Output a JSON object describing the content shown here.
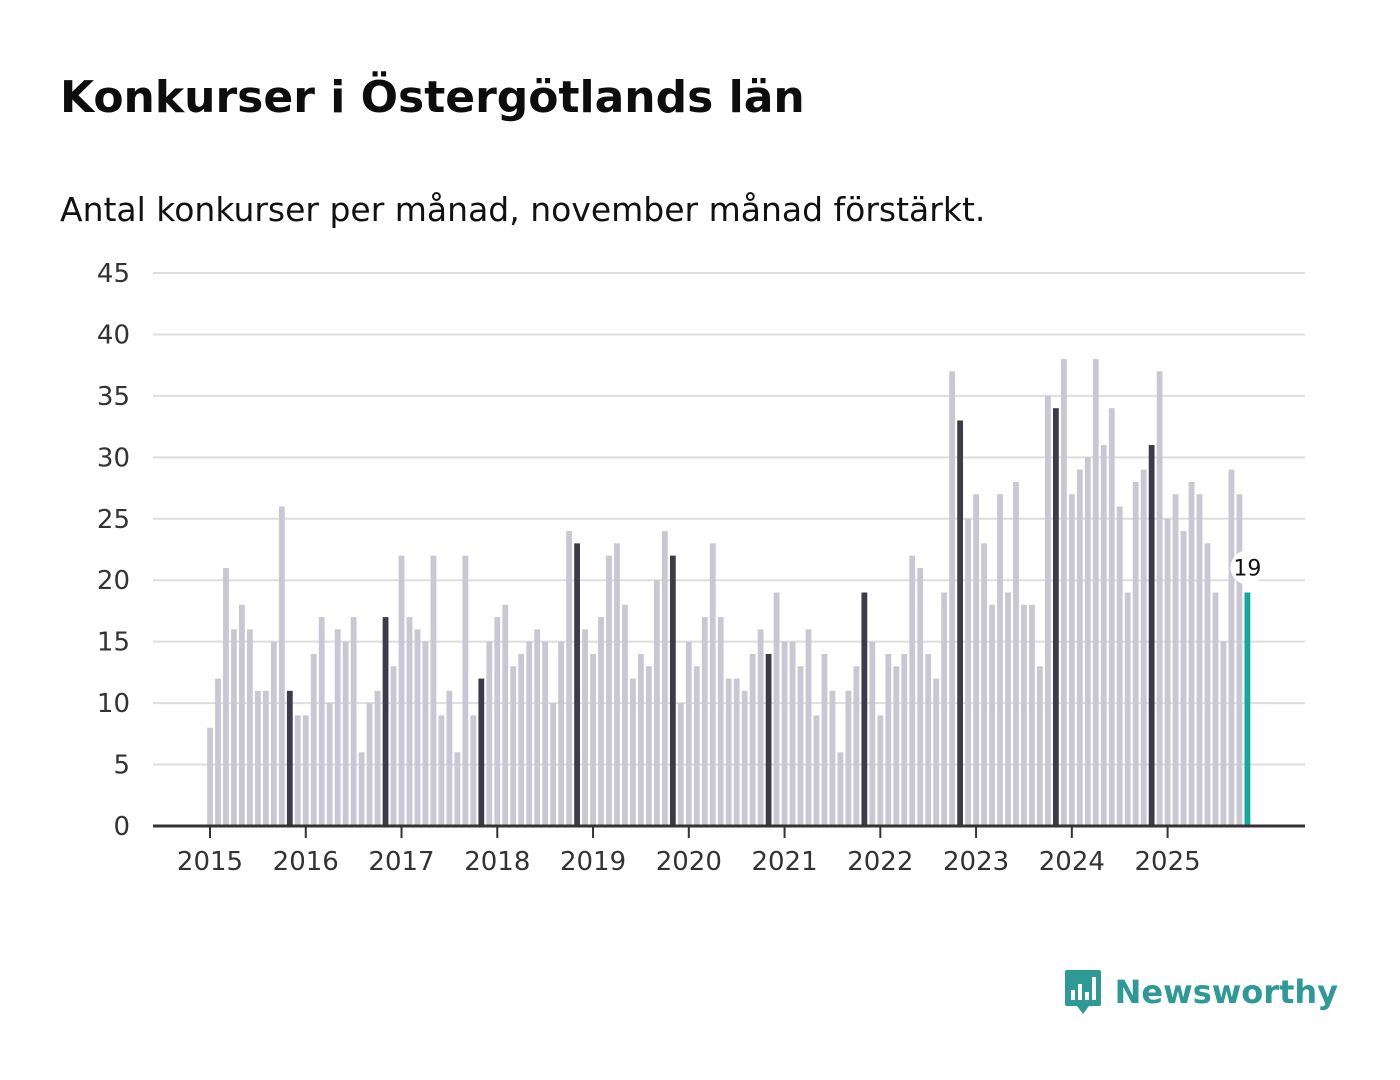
{
  "header": {
    "title": "Konkurser i Östergötlands län",
    "subtitle": "Antal konkurser per månad, november månad förstärkt."
  },
  "branding": {
    "name": "Newsworthy"
  },
  "colors": {
    "bar": "#c8c7d3",
    "highlight": "#3d3b4a",
    "current": "#12a89e",
    "grid": "#dddddd",
    "axis": "#333333",
    "brand": "#2e9a95"
  },
  "chart_data": {
    "type": "bar",
    "title": "Konkurser i Östergötlands län",
    "subtitle": "Antal konkurser per månad, november månad förstärkt.",
    "xlabel": "",
    "ylabel": "",
    "ylim": [
      0,
      45
    ],
    "yticks": [
      0,
      5,
      10,
      15,
      20,
      25,
      30,
      35,
      40,
      45
    ],
    "grid": true,
    "start": "2015-01",
    "year_labels": [
      "2015",
      "2016",
      "2017",
      "2018",
      "2019",
      "2020",
      "2021",
      "2022",
      "2023",
      "2024",
      "2025"
    ],
    "highlight_month": "november",
    "values": [
      8,
      12,
      21,
      16,
      18,
      16,
      11,
      11,
      15,
      26,
      11,
      9,
      9,
      14,
      17,
      10,
      16,
      15,
      17,
      6,
      10,
      11,
      17,
      13,
      22,
      17,
      16,
      15,
      22,
      9,
      11,
      6,
      22,
      9,
      12,
      15,
      17,
      18,
      13,
      14,
      15,
      16,
      15,
      10,
      15,
      24,
      23,
      16,
      14,
      17,
      22,
      23,
      18,
      12,
      14,
      13,
      20,
      24,
      22,
      10,
      15,
      13,
      17,
      23,
      17,
      12,
      12,
      11,
      14,
      16,
      14,
      19,
      15,
      15,
      13,
      16,
      9,
      14,
      11,
      6,
      11,
      13,
      19,
      15,
      9,
      14,
      13,
      14,
      22,
      21,
      14,
      12,
      19,
      37,
      33,
      25,
      27,
      23,
      18,
      27,
      19,
      28,
      18,
      18,
      13,
      35,
      34,
      38,
      27,
      29,
      30,
      38,
      31,
      34,
      26,
      19,
      28,
      29,
      31,
      37,
      25,
      27,
      24,
      28,
      27,
      23,
      19,
      15,
      29,
      27,
      19
    ],
    "last_value_label": "19"
  }
}
